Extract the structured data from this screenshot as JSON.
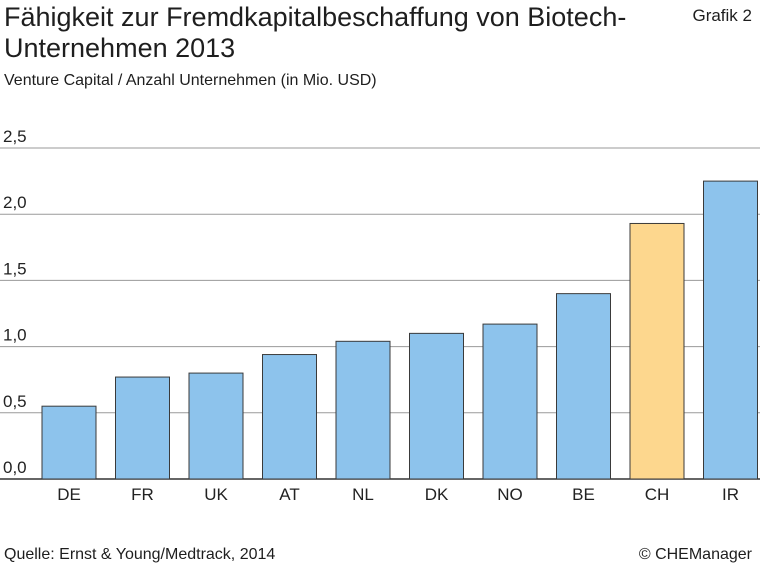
{
  "header": {
    "title": "Fähigkeit zur Fremdkapitalbeschaffung von Biotech-Unternehmen 2013",
    "subtitle": "Venture Capital / Anzahl Unternehmen (in Mio. USD)",
    "grafik_label": "Grafik 2"
  },
  "footer": {
    "source": "Quelle: Ernst & Young/Medtrack, 2014",
    "copyright": "© CHEManager"
  },
  "colors": {
    "bar": "#8DC3EC",
    "bar_highlight": "#FDD78E",
    "grid": "#9a9a9a",
    "axis": "#333333"
  },
  "chart_data": {
    "type": "bar",
    "categories": [
      "DE",
      "FR",
      "UK",
      "AT",
      "NL",
      "DK",
      "NO",
      "BE",
      "CH",
      "IR"
    ],
    "values": [
      0.55,
      0.77,
      0.8,
      0.94,
      1.04,
      1.1,
      1.17,
      1.4,
      1.93,
      2.25
    ],
    "highlight_category": "CH",
    "ylim": [
      0,
      2.5
    ],
    "yticks": [
      0,
      0.5,
      1.0,
      1.5,
      2.0,
      2.5
    ],
    "ytick_labels": [
      "0,0",
      "0,5",
      "1,0",
      "1,5",
      "2,0",
      "2,5"
    ],
    "grid": true
  }
}
